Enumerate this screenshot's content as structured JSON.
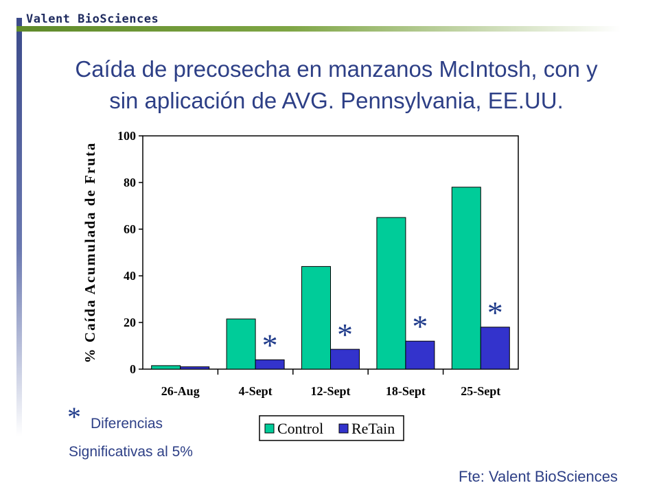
{
  "brand": "Valent BioSciences",
  "title_line1": "Caída de precosecha en manzanos McIntosh, con y",
  "title_line2": "sin aplicación de AVG. Pennsylvania, EE.UU.",
  "note": {
    "star": "*",
    "line1": "Diferencias",
    "line2": "Significativas al 5%"
  },
  "source": "Fte: Valent BioSciences",
  "colors": {
    "control": "#00cc99",
    "retain": "#3333cc",
    "title": "#2d3f86"
  },
  "chart_data": {
    "type": "bar",
    "title": "",
    "xlabel": "",
    "ylabel": "% Caída Acumulada de Fruta",
    "ylim": [
      0,
      100
    ],
    "yticks": [
      0,
      20,
      40,
      60,
      80,
      100
    ],
    "categories": [
      "26-Aug",
      "4-Sept",
      "12-Sept",
      "18-Sept",
      "25-Sept"
    ],
    "series": [
      {
        "name": "Control",
        "values": [
          1.5,
          21.5,
          44,
          65,
          78
        ]
      },
      {
        "name": "ReTain",
        "values": [
          1,
          4,
          8.5,
          12,
          18
        ]
      }
    ],
    "significance_marks": [
      "",
      "*",
      "*",
      "*",
      "*"
    ],
    "legend_position": "bottom-center",
    "grid": false
  }
}
